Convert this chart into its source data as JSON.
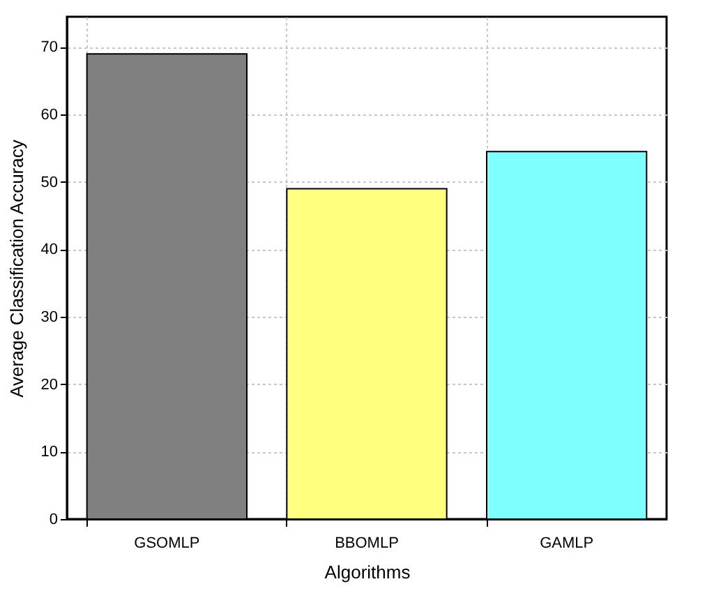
{
  "chart_data": {
    "type": "bar",
    "xlabel": "Algorithms",
    "ylabel": "Average Classification Accuracy",
    "categories": [
      "GSOMLP",
      "BBOMLP",
      "GAMLP"
    ],
    "values": [
      69,
      49,
      54.5
    ],
    "colors": [
      "#808080",
      "#ffff80",
      "#80ffff"
    ],
    "ylim": [
      0,
      74.5
    ],
    "yticks": [
      0,
      10,
      20,
      30,
      40,
      50,
      60,
      70
    ],
    "grid": true
  }
}
